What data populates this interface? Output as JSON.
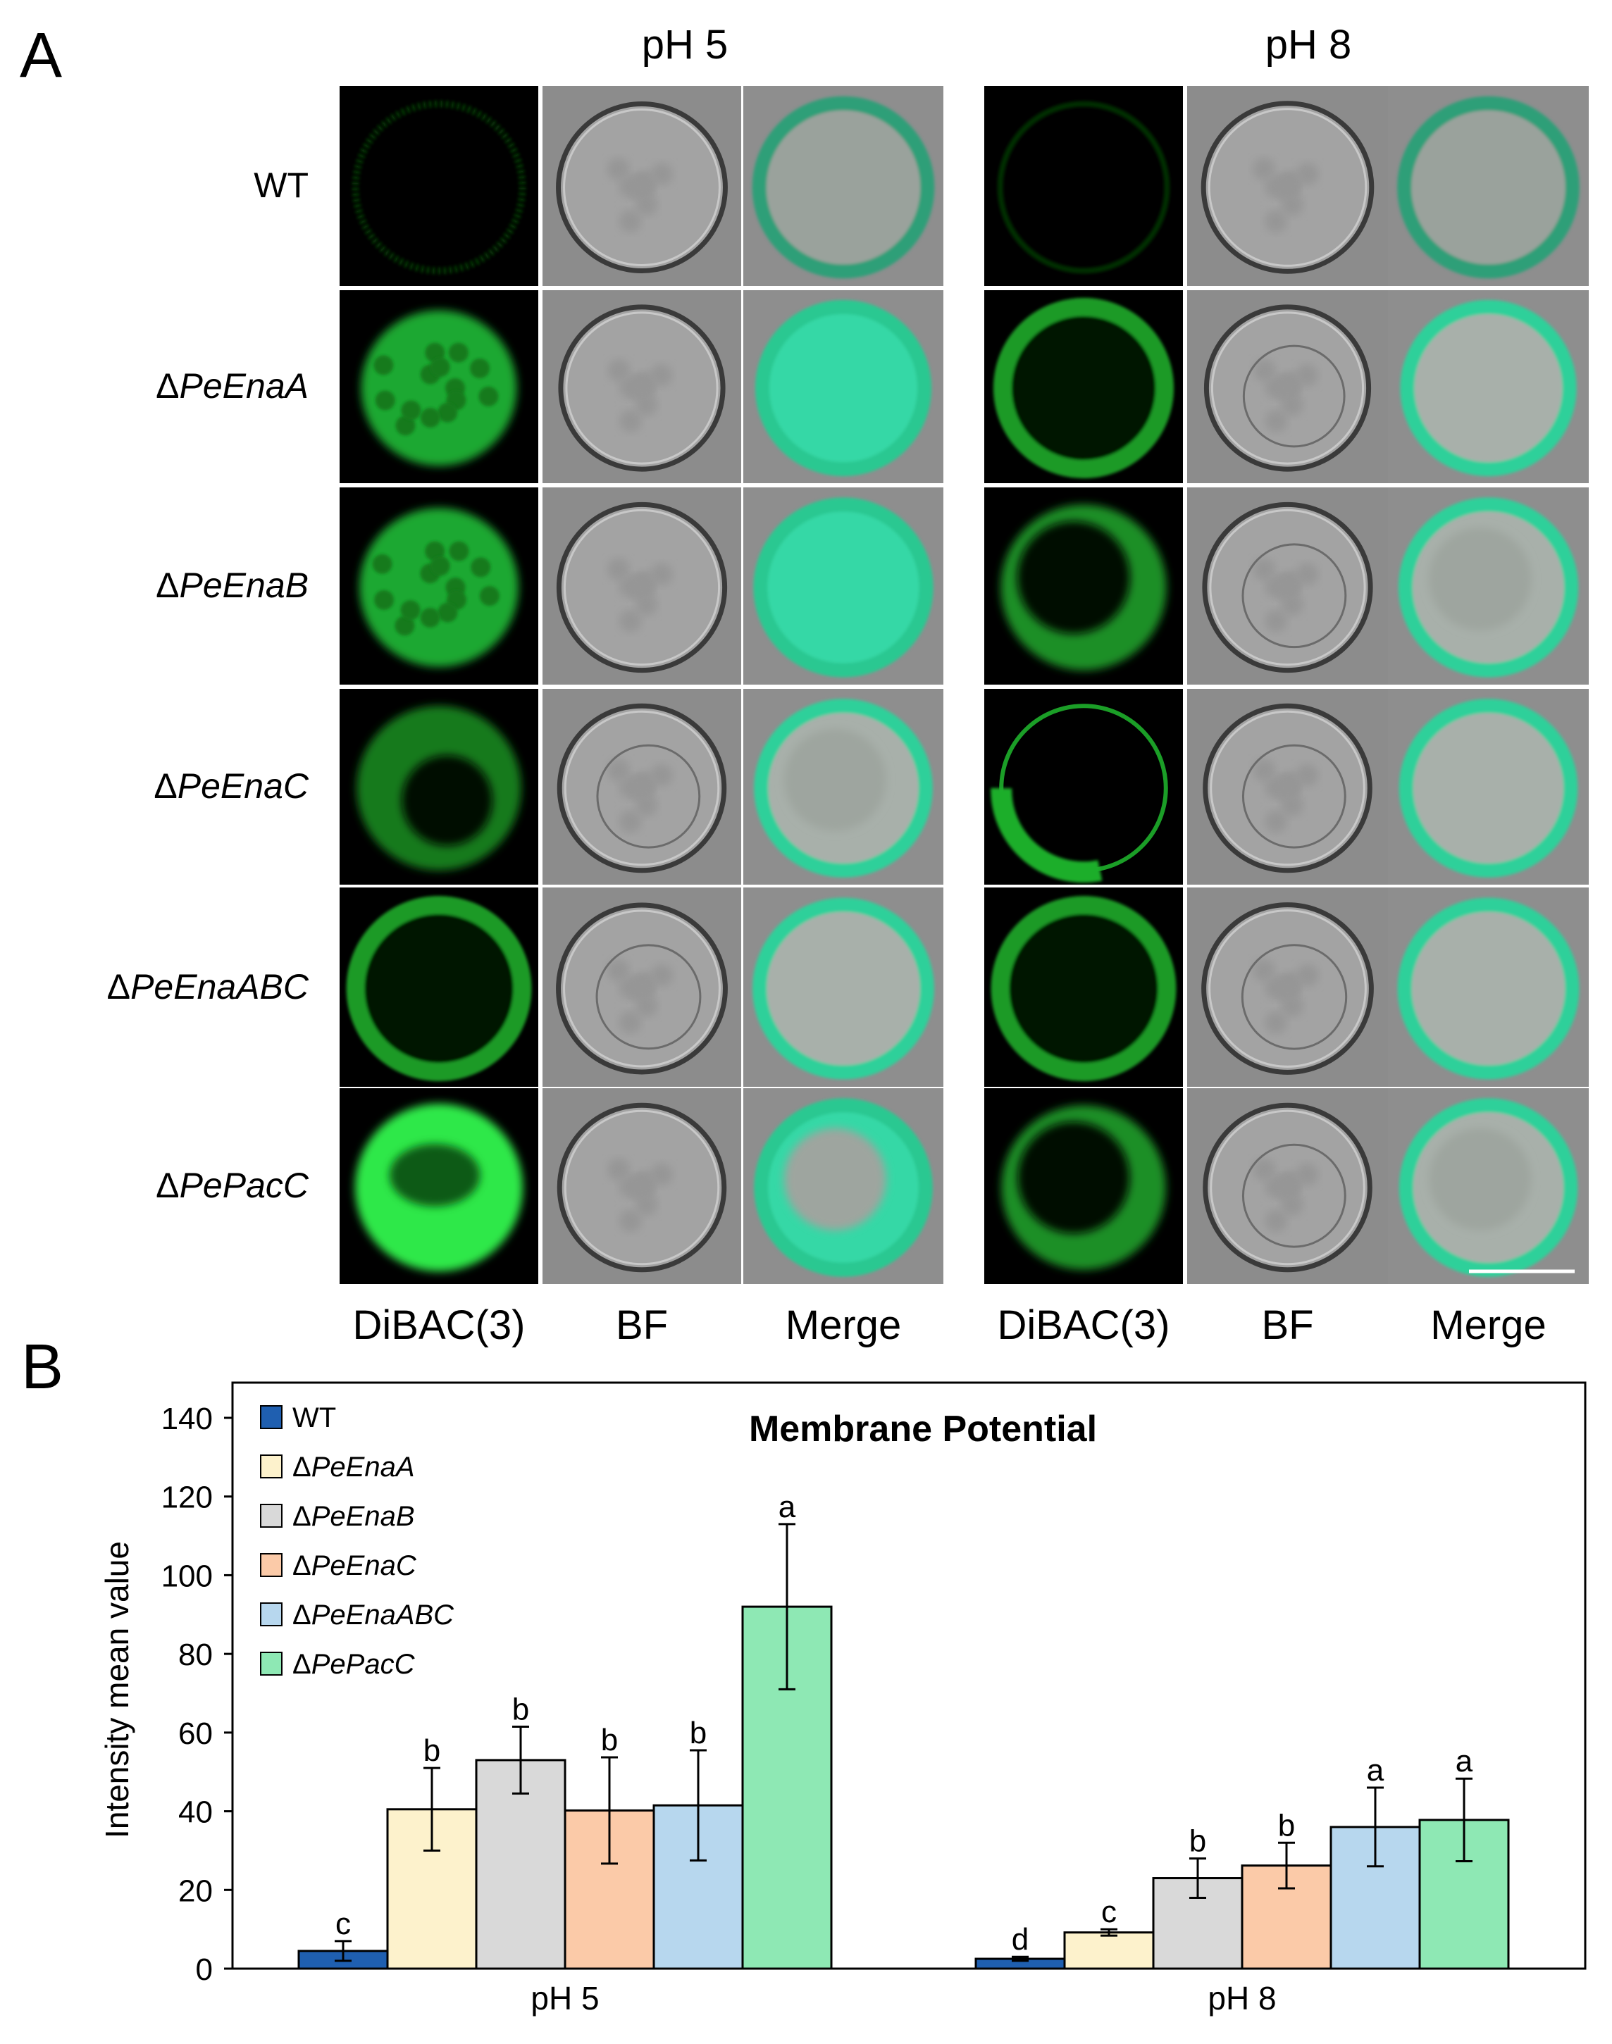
{
  "panel_a": {
    "letter": "A",
    "group_titles": [
      "pH 5",
      "pH 8"
    ],
    "row_labels": [
      {
        "prefix": "",
        "italic": "",
        "plain": "WT"
      },
      {
        "prefix": "Δ",
        "italic": "PeEnaA",
        "plain": ""
      },
      {
        "prefix": "Δ",
        "italic": "PeEnaB",
        "plain": ""
      },
      {
        "prefix": "Δ",
        "italic": "PeEnaC",
        "plain": ""
      },
      {
        "prefix": "Δ",
        "italic": "PeEnaABC",
        "plain": ""
      },
      {
        "prefix": "Δ",
        "italic": "PePacC",
        "plain": ""
      }
    ],
    "column_labels": [
      "DiBAC(3)",
      "BF",
      "Merge",
      "DiBAC(3)",
      "BF",
      "Merge"
    ]
  },
  "panel_b": {
    "letter": "B"
  },
  "chart_data": {
    "type": "bar",
    "title": "Membrane Potential",
    "ylabel": "Intensity mean value",
    "xlabel": "",
    "categories": [
      "pH 5",
      "pH 8"
    ],
    "ylim": [
      0,
      140
    ],
    "yticks": [
      0,
      20,
      40,
      60,
      80,
      100,
      120,
      140
    ],
    "legend_position": "top-left",
    "series": [
      {
        "prefix": "",
        "italic": "",
        "name": "WT",
        "color": "#1f5fb0",
        "values": [
          4.5,
          2.5
        ],
        "errors": [
          2.5,
          0.5
        ],
        "letters": [
          "c",
          "d"
        ]
      },
      {
        "prefix": "Δ",
        "italic": "PeEnaA",
        "name": "",
        "color": "#fdf2cc",
        "values": [
          40.5,
          9.2
        ],
        "errors": [
          10.5,
          0.8
        ],
        "letters": [
          "b",
          "c"
        ]
      },
      {
        "prefix": "Δ",
        "italic": "PeEnaB",
        "name": "",
        "color": "#d9d9d9",
        "values": [
          53,
          23
        ],
        "errors": [
          8.5,
          5
        ],
        "letters": [
          "b",
          "b"
        ]
      },
      {
        "prefix": "Δ",
        "italic": "PeEnaC",
        "name": "",
        "color": "#fbcaa8",
        "values": [
          40.2,
          26.2
        ],
        "errors": [
          13.5,
          5.8
        ],
        "letters": [
          "b",
          "b"
        ]
      },
      {
        "prefix": "Δ",
        "italic": "PeEnaABC",
        "name": "",
        "color": "#b7d7ee",
        "values": [
          41.5,
          36
        ],
        "errors": [
          14,
          10
        ],
        "letters": [
          "b",
          "a"
        ]
      },
      {
        "prefix": "Δ",
        "italic": "PePacC",
        "name": "",
        "color": "#8ee8b4",
        "values": [
          92,
          37.8
        ],
        "errors": [
          21,
          10.5
        ],
        "letters": [
          "a",
          "a"
        ]
      }
    ]
  }
}
